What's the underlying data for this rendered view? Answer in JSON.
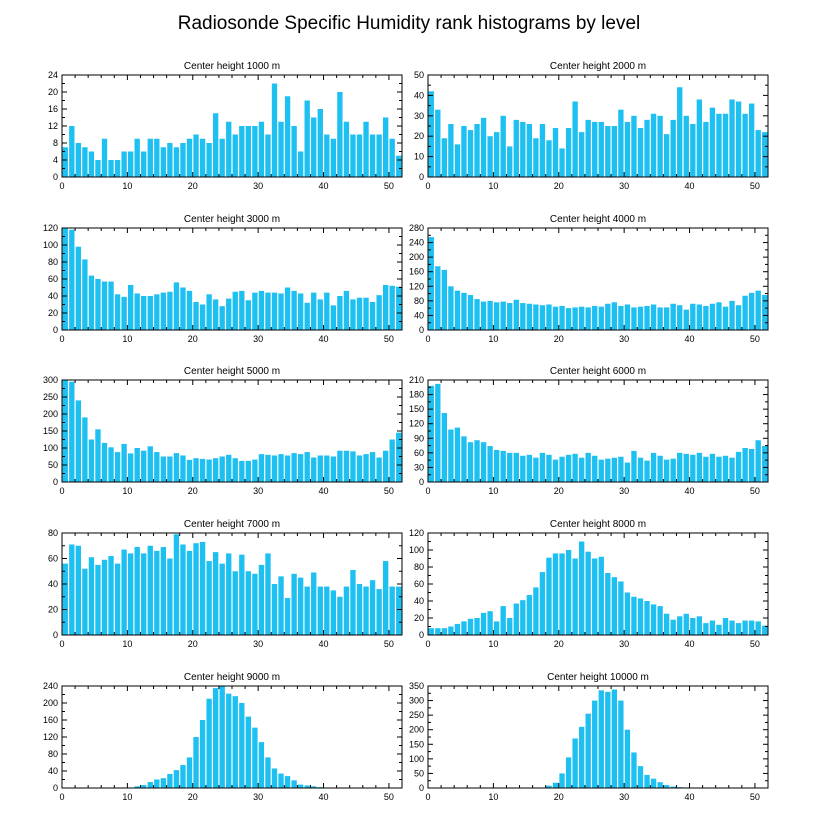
{
  "figure": {
    "title": "Radiosonde Specific Humidity rank histograms by level"
  },
  "colors": {
    "bar": "#1EC0F2",
    "axis": "#000000",
    "background": "#ffffff"
  },
  "chart_data": [
    {
      "type": "bar",
      "title": "Center height 1000 m",
      "xlabel": "",
      "ylabel": "",
      "xlim": [
        0,
        52
      ],
      "ylim": [
        0,
        24
      ],
      "xticks": [
        0,
        10,
        20,
        30,
        40,
        50
      ],
      "yticks": [
        0,
        4,
        8,
        12,
        16,
        20,
        24
      ],
      "values": [
        7,
        12,
        8,
        7,
        6,
        4,
        9,
        4,
        4,
        6,
        6,
        9,
        6,
        9,
        9,
        7,
        8,
        7,
        8,
        9,
        10,
        9,
        8,
        15,
        9,
        13,
        10,
        12,
        12,
        12,
        13,
        10,
        22,
        13,
        19,
        12,
        6,
        18,
        14,
        16,
        10,
        9,
        20,
        13,
        10,
        10,
        13,
        10,
        10,
        14,
        9,
        5
      ]
    },
    {
      "type": "bar",
      "title": "Center height 2000 m",
      "xlabel": "",
      "ylabel": "",
      "xlim": [
        0,
        52
      ],
      "ylim": [
        0,
        50
      ],
      "xticks": [
        0,
        10,
        20,
        30,
        40,
        50
      ],
      "yticks": [
        0,
        10,
        20,
        30,
        40,
        50
      ],
      "values": [
        42,
        33,
        19,
        26,
        16,
        25,
        23,
        26,
        29,
        20,
        22,
        30,
        15,
        28,
        27,
        26,
        19,
        26,
        18,
        24,
        14,
        24,
        37,
        22,
        28,
        27,
        27,
        25,
        25,
        33,
        27,
        30,
        24,
        28,
        31,
        30,
        21,
        28,
        44,
        30,
        26,
        38,
        27,
        34,
        31,
        31,
        38,
        37,
        31,
        36,
        23,
        22
      ]
    },
    {
      "type": "bar",
      "title": "Center height 3000 m",
      "xlabel": "",
      "ylabel": "",
      "xlim": [
        0,
        52
      ],
      "ylim": [
        0,
        120
      ],
      "xticks": [
        0,
        10,
        20,
        30,
        40,
        50
      ],
      "yticks": [
        0,
        20,
        40,
        60,
        80,
        100,
        120
      ],
      "values": [
        120,
        118,
        98,
        83,
        64,
        60,
        57,
        57,
        42,
        39,
        53,
        43,
        40,
        40,
        42,
        44,
        45,
        56,
        50,
        46,
        33,
        30,
        42,
        36,
        28,
        37,
        45,
        46,
        35,
        44,
        46,
        44,
        44,
        43,
        50,
        46,
        43,
        32,
        44,
        36,
        44,
        29,
        40,
        46,
        36,
        38,
        38,
        33,
        41,
        53,
        52,
        51
      ]
    },
    {
      "type": "bar",
      "title": "Center height 4000 m",
      "xlabel": "",
      "ylabel": "",
      "xlim": [
        0,
        52
      ],
      "ylim": [
        0,
        280
      ],
      "xticks": [
        0,
        10,
        20,
        30,
        40,
        50
      ],
      "yticks": [
        0,
        40,
        80,
        120,
        160,
        200,
        240,
        280
      ],
      "values": [
        255,
        175,
        165,
        120,
        108,
        102,
        96,
        85,
        78,
        80,
        76,
        78,
        74,
        83,
        74,
        72,
        70,
        68,
        70,
        64,
        66,
        60,
        62,
        64,
        62,
        66,
        64,
        72,
        76,
        66,
        70,
        62,
        64,
        66,
        70,
        62,
        62,
        72,
        68,
        56,
        72,
        70,
        66,
        72,
        76,
        64,
        80,
        68,
        94,
        102,
        108,
        96
      ]
    },
    {
      "type": "bar",
      "title": "Center height 5000 m",
      "xlabel": "",
      "ylabel": "",
      "xlim": [
        0,
        52
      ],
      "ylim": [
        0,
        300
      ],
      "xticks": [
        0,
        10,
        20,
        30,
        40,
        50
      ],
      "yticks": [
        0,
        50,
        100,
        150,
        200,
        250,
        300
      ],
      "values": [
        300,
        295,
        240,
        190,
        125,
        155,
        115,
        102,
        88,
        112,
        84,
        100,
        92,
        105,
        88,
        75,
        75,
        85,
        78,
        65,
        70,
        68,
        66,
        70,
        75,
        80,
        70,
        62,
        62,
        66,
        82,
        80,
        78,
        82,
        78,
        85,
        82,
        88,
        72,
        78,
        78,
        75,
        92,
        92,
        90,
        78,
        82,
        88,
        72,
        92,
        125,
        145
      ]
    },
    {
      "type": "bar",
      "title": "Center height 6000 m",
      "xlabel": "",
      "ylabel": "",
      "xlim": [
        0,
        52
      ],
      "ylim": [
        0,
        210
      ],
      "xticks": [
        0,
        10,
        20,
        30,
        40,
        50
      ],
      "yticks": [
        0,
        30,
        60,
        90,
        120,
        150,
        180,
        210
      ],
      "values": [
        198,
        202,
        142,
        108,
        112,
        94,
        82,
        86,
        82,
        74,
        66,
        64,
        60,
        60,
        54,
        56,
        50,
        60,
        56,
        46,
        52,
        56,
        58,
        50,
        60,
        54,
        46,
        48,
        50,
        52,
        40,
        64,
        50,
        44,
        60,
        54,
        46,
        48,
        60,
        58,
        56,
        60,
        52,
        58,
        52,
        54,
        50,
        62,
        70,
        68,
        86,
        74
      ]
    },
    {
      "type": "bar",
      "title": "Center height 7000 m",
      "xlabel": "",
      "ylabel": "",
      "xlim": [
        0,
        52
      ],
      "ylim": [
        0,
        80
      ],
      "xticks": [
        0,
        10,
        20,
        30,
        40,
        50
      ],
      "yticks": [
        0,
        20,
        40,
        60,
        80
      ],
      "values": [
        56,
        71,
        70,
        52,
        61,
        55,
        59,
        62,
        56,
        67,
        64,
        69,
        64,
        70,
        66,
        69,
        60,
        79,
        71,
        66,
        72,
        73,
        58,
        65,
        56,
        64,
        50,
        63,
        50,
        48,
        55,
        64,
        40,
        46,
        29,
        48,
        45,
        38,
        49,
        38,
        38,
        35,
        30,
        38,
        51,
        40,
        38,
        43,
        36,
        58,
        38,
        38
      ]
    },
    {
      "type": "bar",
      "title": "Center height 8000 m",
      "xlabel": "",
      "ylabel": "",
      "xlim": [
        0,
        52
      ],
      "ylim": [
        0,
        120
      ],
      "xticks": [
        0,
        10,
        20,
        30,
        40,
        50
      ],
      "yticks": [
        0,
        20,
        40,
        60,
        80,
        100,
        120
      ],
      "values": [
        8,
        8,
        8,
        10,
        13,
        16,
        19,
        20,
        26,
        28,
        16,
        34,
        20,
        37,
        41,
        47,
        56,
        74,
        91,
        96,
        96,
        100,
        90,
        110,
        98,
        90,
        92,
        73,
        68,
        63,
        50,
        45,
        43,
        40,
        36,
        34,
        25,
        18,
        22,
        25,
        20,
        22,
        14,
        17,
        12,
        20,
        17,
        14,
        17,
        17,
        16,
        11
      ]
    },
    {
      "type": "bar",
      "title": "Center height 9000 m",
      "xlabel": "",
      "ylabel": "",
      "xlim": [
        0,
        52
      ],
      "ylim": [
        0,
        240
      ],
      "xticks": [
        0,
        10,
        20,
        30,
        40,
        50
      ],
      "yticks": [
        0,
        40,
        80,
        120,
        160,
        200,
        240
      ],
      "values": [
        0,
        0,
        0,
        0,
        0,
        0,
        0,
        0,
        0,
        0,
        0,
        4,
        7,
        14,
        20,
        23,
        33,
        42,
        54,
        72,
        120,
        160,
        210,
        235,
        240,
        222,
        216,
        200,
        168,
        142,
        108,
        72,
        46,
        34,
        28,
        18,
        8,
        6,
        4,
        2,
        1,
        1,
        0,
        0,
        0,
        0,
        0,
        0,
        0,
        0,
        0,
        0
      ]
    },
    {
      "type": "bar",
      "title": "Center height 10000 m",
      "xlabel": "",
      "ylabel": "",
      "xlim": [
        0,
        52
      ],
      "ylim": [
        0,
        350
      ],
      "xticks": [
        0,
        10,
        20,
        30,
        40,
        50
      ],
      "yticks": [
        0,
        50,
        100,
        150,
        200,
        250,
        300,
        350
      ],
      "values": [
        0,
        0,
        0,
        0,
        0,
        0,
        0,
        0,
        0,
        0,
        0,
        0,
        0,
        0,
        0,
        0,
        0,
        1,
        8,
        18,
        50,
        105,
        170,
        210,
        255,
        300,
        335,
        330,
        338,
        300,
        200,
        122,
        75,
        45,
        32,
        20,
        10,
        5,
        3,
        2,
        1,
        0,
        0,
        0,
        0,
        0,
        0,
        0,
        0,
        0,
        0,
        0
      ]
    }
  ]
}
